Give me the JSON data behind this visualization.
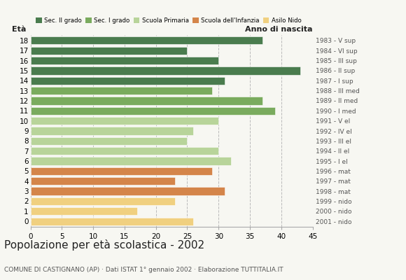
{
  "ages": [
    18,
    17,
    16,
    15,
    14,
    13,
    12,
    11,
    10,
    9,
    8,
    7,
    6,
    5,
    4,
    3,
    2,
    1,
    0
  ],
  "values": [
    37,
    25,
    30,
    43,
    31,
    29,
    37,
    39,
    30,
    26,
    25,
    30,
    32,
    29,
    23,
    31,
    23,
    17,
    26
  ],
  "colors": [
    "#4a7c4e",
    "#4a7c4e",
    "#4a7c4e",
    "#4a7c4e",
    "#4a7c4e",
    "#7aab5e",
    "#7aab5e",
    "#7aab5e",
    "#b8d49a",
    "#b8d49a",
    "#b8d49a",
    "#b8d49a",
    "#b8d49a",
    "#d4854a",
    "#d4854a",
    "#d4854a",
    "#f0d080",
    "#f0d080",
    "#f0d080"
  ],
  "right_labels": [
    "1983 - V sup",
    "1984 - VI sup",
    "1985 - III sup",
    "1986 - II sup",
    "1987 - I sup",
    "1988 - III med",
    "1989 - II med",
    "1990 - I med",
    "1991 - V el",
    "1992 - IV el",
    "1993 - III el",
    "1994 - II el",
    "1995 - I el",
    "1996 - mat",
    "1997 - mat",
    "1998 - mat",
    "1999 - nido",
    "2000 - nido",
    "2001 - nido"
  ],
  "legend_labels": [
    "Sec. II grado",
    "Sec. I grado",
    "Scuola Primaria",
    "Scuola dell'Infanzia",
    "Asilo Nido"
  ],
  "legend_colors": [
    "#4a7c4e",
    "#7aab5e",
    "#b8d49a",
    "#d4854a",
    "#f0d080"
  ],
  "title": "Popolazione per età scolastica - 2002",
  "subtitle": "COMUNE DI CASTIGNANO (AP) · Dati ISTAT 1° gennaio 2002 · Elaborazione TUTTITALIA.IT",
  "xlabel_age": "Età",
  "xlabel_birth": "Anno di nascita",
  "xlim": [
    0,
    45
  ],
  "xticks": [
    0,
    5,
    10,
    15,
    20,
    25,
    30,
    35,
    40,
    45
  ],
  "bar_height": 0.78,
  "grid_color": "#bbbbbb",
  "bg_color": "#f7f7f2",
  "title_color": "#222222",
  "subtitle_color": "#555555"
}
